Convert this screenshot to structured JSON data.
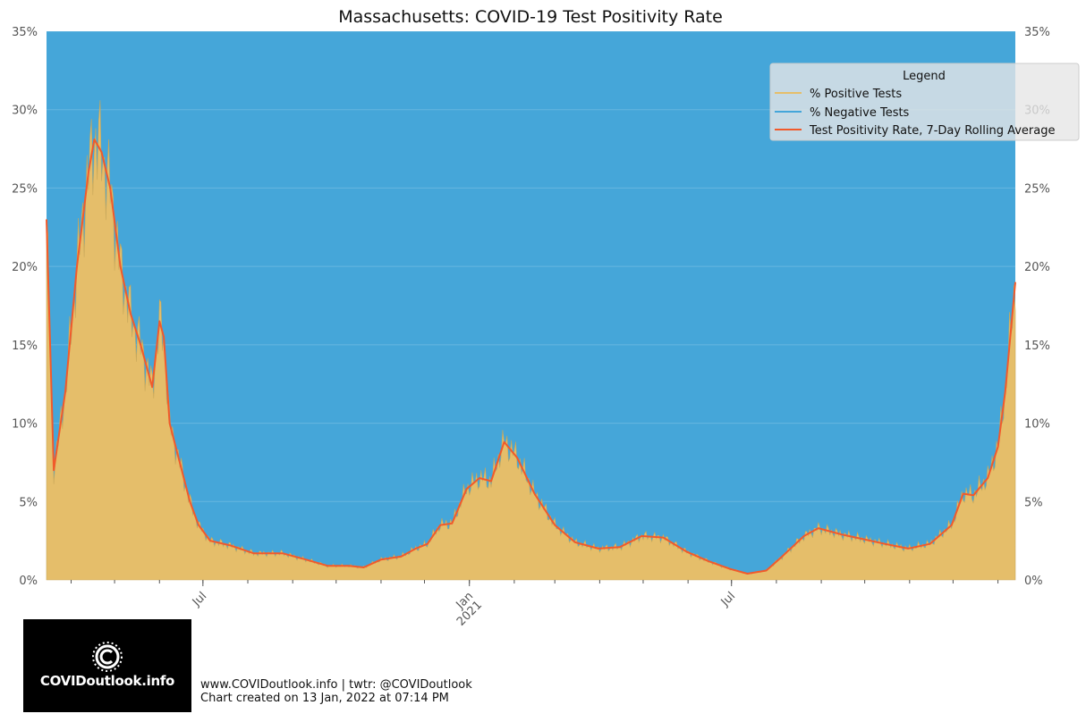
{
  "chart_data": {
    "type": "area",
    "title": "Massachusetts: COVID-19 Test Positivity Rate",
    "xlabel": "",
    "ylabel": "",
    "ylim": [
      0,
      35
    ],
    "y_ticks": [
      "0%",
      "5%",
      "10%",
      "15%",
      "20%",
      "25%",
      "30%",
      "35%"
    ],
    "x_ticks": [
      {
        "date": "2020-07-01",
        "label": "Jul",
        "sublabel": ""
      },
      {
        "date": "2021-01-01",
        "label": "Jan",
        "sublabel": "2021"
      },
      {
        "date": "2021-07-01",
        "label": "Jul",
        "sublabel": ""
      }
    ],
    "xlim": [
      "2020-03-15",
      "2022-01-13"
    ],
    "grid": true,
    "legend_position": "top-right",
    "legend_title": "Legend",
    "series": [
      {
        "name": "% Positive Tests",
        "color": "#e5be6a"
      },
      {
        "name": "% Negative Tests",
        "color": "#45a6d9"
      },
      {
        "name": "Test Positivity Rate, 7-Day Rolling Average",
        "color": "#f15a2b"
      }
    ],
    "positivity_rolling_avg": [
      {
        "x": "2020-03-15",
        "y": 23.0
      },
      {
        "x": "2020-03-20",
        "y": 7.0
      },
      {
        "x": "2020-03-28",
        "y": 12.0
      },
      {
        "x": "2020-04-05",
        "y": 20.0
      },
      {
        "x": "2020-04-13",
        "y": 26.0
      },
      {
        "x": "2020-04-17",
        "y": 28.1
      },
      {
        "x": "2020-04-22",
        "y": 27.3
      },
      {
        "x": "2020-04-28",
        "y": 25.0
      },
      {
        "x": "2020-05-05",
        "y": 20.0
      },
      {
        "x": "2020-05-12",
        "y": 17.0
      },
      {
        "x": "2020-05-19",
        "y": 15.0
      },
      {
        "x": "2020-05-27",
        "y": 12.3
      },
      {
        "x": "2020-06-01",
        "y": 16.5
      },
      {
        "x": "2020-06-04",
        "y": 15.5
      },
      {
        "x": "2020-06-08",
        "y": 10.0
      },
      {
        "x": "2020-06-15",
        "y": 7.5
      },
      {
        "x": "2020-06-22",
        "y": 5.0
      },
      {
        "x": "2020-06-28",
        "y": 3.5
      },
      {
        "x": "2020-07-06",
        "y": 2.5
      },
      {
        "x": "2020-07-20",
        "y": 2.2
      },
      {
        "x": "2020-08-05",
        "y": 1.7
      },
      {
        "x": "2020-08-25",
        "y": 1.7
      },
      {
        "x": "2020-09-10",
        "y": 1.3
      },
      {
        "x": "2020-09-25",
        "y": 0.9
      },
      {
        "x": "2020-10-10",
        "y": 0.9
      },
      {
        "x": "2020-10-20",
        "y": 0.8
      },
      {
        "x": "2020-11-01",
        "y": 1.3
      },
      {
        "x": "2020-11-15",
        "y": 1.5
      },
      {
        "x": "2020-11-25",
        "y": 2.0
      },
      {
        "x": "2020-12-03",
        "y": 2.3
      },
      {
        "x": "2020-12-12",
        "y": 3.5
      },
      {
        "x": "2020-12-20",
        "y": 3.6
      },
      {
        "x": "2020-12-30",
        "y": 5.8
      },
      {
        "x": "2021-01-08",
        "y": 6.5
      },
      {
        "x": "2021-01-16",
        "y": 6.3
      },
      {
        "x": "2021-01-25",
        "y": 8.8
      },
      {
        "x": "2021-02-03",
        "y": 7.8
      },
      {
        "x": "2021-02-15",
        "y": 5.5
      },
      {
        "x": "2021-03-01",
        "y": 3.5
      },
      {
        "x": "2021-03-15",
        "y": 2.4
      },
      {
        "x": "2021-03-31",
        "y": 2.0
      },
      {
        "x": "2021-04-15",
        "y": 2.1
      },
      {
        "x": "2021-04-30",
        "y": 2.8
      },
      {
        "x": "2021-05-15",
        "y": 2.7
      },
      {
        "x": "2021-05-31",
        "y": 1.8
      },
      {
        "x": "2021-06-15",
        "y": 1.2
      },
      {
        "x": "2021-06-30",
        "y": 0.7
      },
      {
        "x": "2021-07-12",
        "y": 0.4
      },
      {
        "x": "2021-07-25",
        "y": 0.6
      },
      {
        "x": "2021-08-05",
        "y": 1.5
      },
      {
        "x": "2021-08-20",
        "y": 2.8
      },
      {
        "x": "2021-08-30",
        "y": 3.3
      },
      {
        "x": "2021-09-15",
        "y": 2.9
      },
      {
        "x": "2021-09-30",
        "y": 2.6
      },
      {
        "x": "2021-10-15",
        "y": 2.3
      },
      {
        "x": "2021-10-31",
        "y": 2.0
      },
      {
        "x": "2021-11-15",
        "y": 2.3
      },
      {
        "x": "2021-11-30",
        "y": 3.5
      },
      {
        "x": "2021-12-08",
        "y": 5.5
      },
      {
        "x": "2021-12-15",
        "y": 5.4
      },
      {
        "x": "2021-12-25",
        "y": 6.5
      },
      {
        "x": "2022-01-01",
        "y": 8.5
      },
      {
        "x": "2022-01-06",
        "y": 12.0
      },
      {
        "x": "2022-01-13",
        "y": 19.0
      }
    ]
  },
  "footer": {
    "line1": "www.COVIDoutlook.info | twtr: @COVIDoutlook",
    "line2": "Chart created on 13 Jan, 2022 at 07:14 PM"
  },
  "logo": {
    "text": "COVIDoutlook.info",
    "icon": "virus-c-icon"
  }
}
